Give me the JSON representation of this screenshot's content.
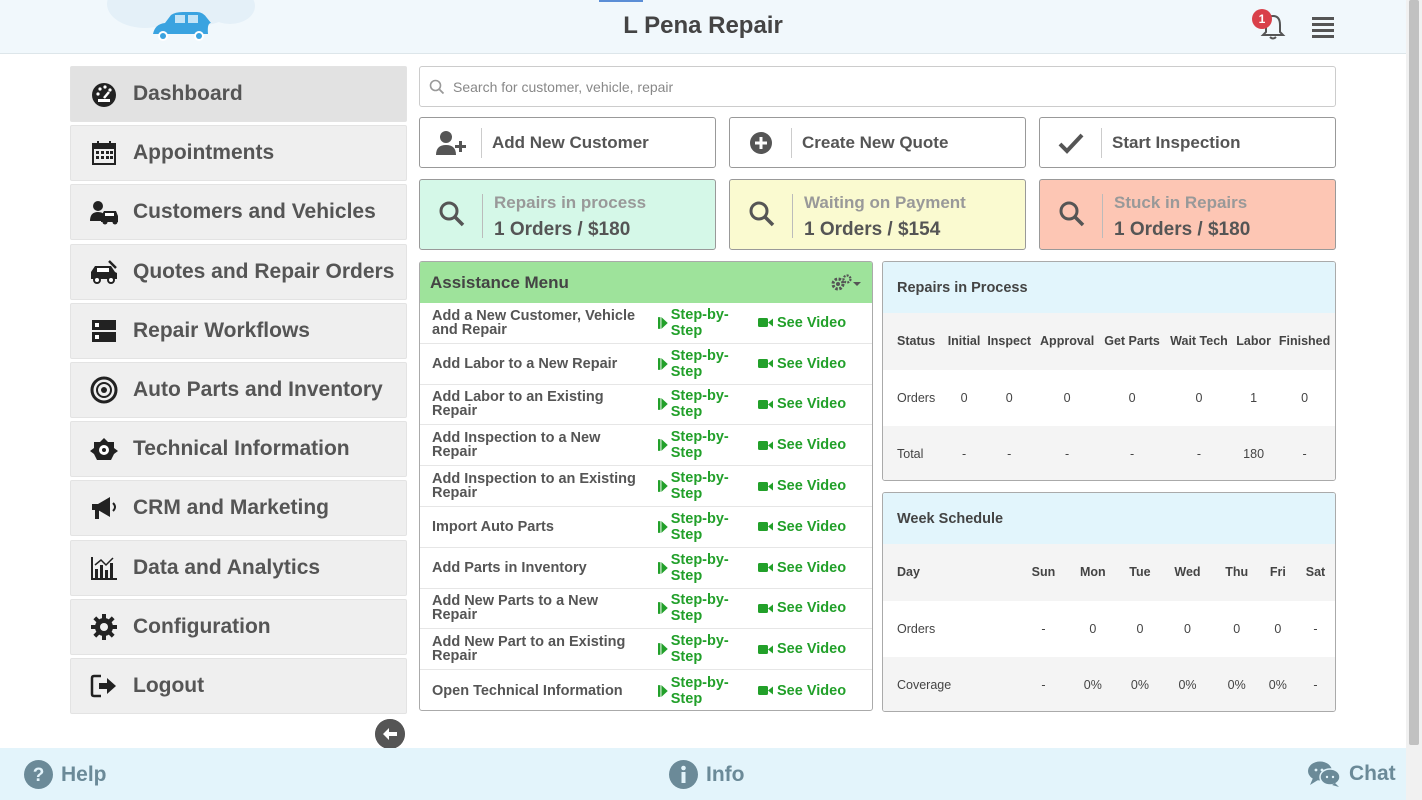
{
  "header": {
    "title": "L Pena Repair",
    "notification_count": "1"
  },
  "sidebar": {
    "items": [
      {
        "label": "Dashboard",
        "icon": "dashboard-icon"
      },
      {
        "label": "Appointments",
        "icon": "calendar-icon"
      },
      {
        "label": "Customers and Vehicles",
        "icon": "customer-car-icon"
      },
      {
        "label": "Quotes and Repair Orders",
        "icon": "car-repair-icon"
      },
      {
        "label": "Repair Workflows",
        "icon": "workflow-icon"
      },
      {
        "label": "Auto Parts and Inventory",
        "icon": "tire-icon"
      },
      {
        "label": "Technical Information",
        "icon": "engine-icon"
      },
      {
        "label": "CRM and Marketing",
        "icon": "megaphone-icon"
      },
      {
        "label": "Data and Analytics",
        "icon": "analytics-icon"
      },
      {
        "label": "Configuration",
        "icon": "gear-icon"
      },
      {
        "label": "Logout",
        "icon": "logout-icon"
      }
    ]
  },
  "search": {
    "placeholder": "Search for customer, vehicle, repair"
  },
  "actions": {
    "add_customer": "Add New Customer",
    "create_quote": "Create New Quote",
    "start_inspection": "Start Inspection"
  },
  "stats": [
    {
      "title": "Repairs in process",
      "value": "1 Orders / $180",
      "color": "#d5f8e8"
    },
    {
      "title": "Waiting on Payment",
      "value": "1 Orders / $154",
      "color": "#fafad0"
    },
    {
      "title": "Stuck in Repairs",
      "value": "1 Orders / $180",
      "color": "#fdc6b4"
    }
  ],
  "assistance": {
    "title": "Assistance Menu",
    "step_label": "Step-by-Step",
    "video_label": "See Video",
    "items": [
      "Add a New Customer, Vehicle and Repair",
      "Add Labor to a New Repair",
      "Add Labor to an Existing Repair",
      "Add Inspection to a New Repair",
      "Add Inspection to an Existing Repair",
      "Import Auto Parts",
      "Add Parts in Inventory",
      "Add New Parts to a New Repair",
      "Add New Part to an Existing Repair",
      "Open Technical Information"
    ]
  },
  "repairs_in_process": {
    "title": "Repairs in Process",
    "headers": [
      "Status",
      "Initial",
      "Inspect",
      "Approval",
      "Get Parts",
      "Wait Tech",
      "Labor",
      "Finished"
    ],
    "rows": [
      [
        "Orders",
        "0",
        "0",
        "0",
        "0",
        "0",
        "1",
        "0"
      ],
      [
        "Total",
        "-",
        "-",
        "-",
        "-",
        "-",
        "180",
        "-"
      ]
    ]
  },
  "week_schedule": {
    "title": "Week Schedule",
    "headers": [
      "Day",
      "Sun",
      "Mon",
      "Tue",
      "Wed",
      "Thu",
      "Fri",
      "Sat"
    ],
    "rows": [
      [
        "Orders",
        "-",
        "0",
        "0",
        "0",
        "0",
        "0",
        "-"
      ],
      [
        "Coverage",
        "-",
        "0%",
        "0%",
        "0%",
        "0%",
        "0%",
        "-"
      ]
    ]
  },
  "footer": {
    "help": "Help",
    "info": "Info",
    "chat": "Chat"
  },
  "colors": {
    "accent_green": "#22a02a",
    "assist_header": "#9ee39b",
    "panel_header": "#e2f5fc",
    "footer_bg": "#e3f4fb",
    "footer_text": "#6b8a98",
    "badge": "#d9404a"
  }
}
